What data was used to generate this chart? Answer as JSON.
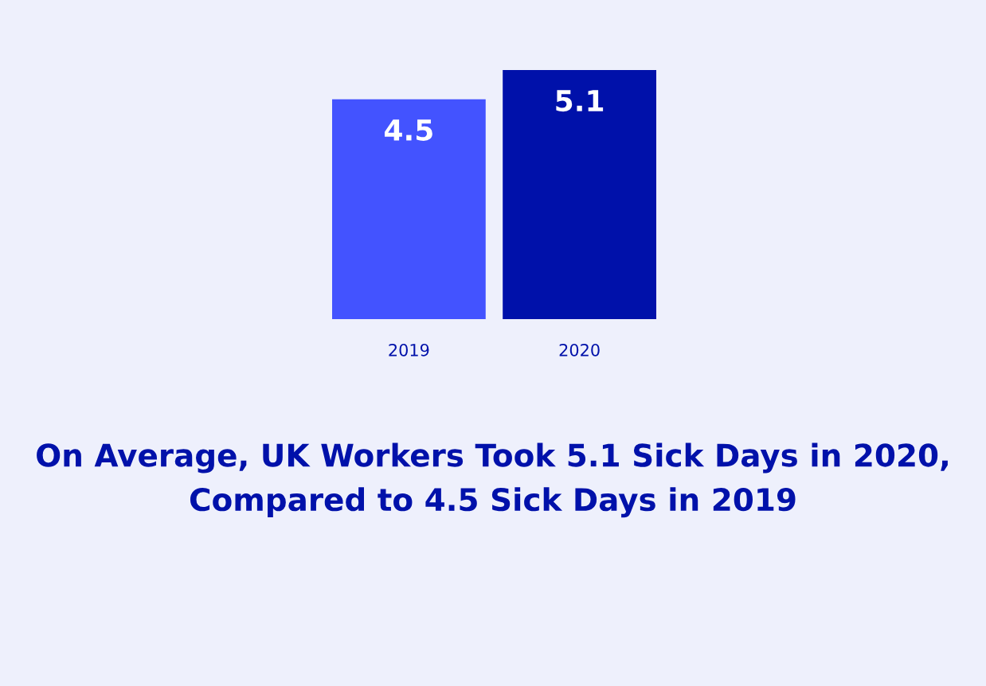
{
  "chart_data": {
    "type": "bar",
    "title": "On Average, UK Workers Took 5.1 Sick Days in 2020, Compared to 4.5 Sick Days in 2019",
    "categories": [
      "2019",
      "2020"
    ],
    "values": [
      4.5,
      5.1
    ],
    "colors": [
      "#4353ff",
      "#0011aa"
    ],
    "data_labels": true,
    "grid": false,
    "legend": false,
    "tick_labels": "x"
  }
}
